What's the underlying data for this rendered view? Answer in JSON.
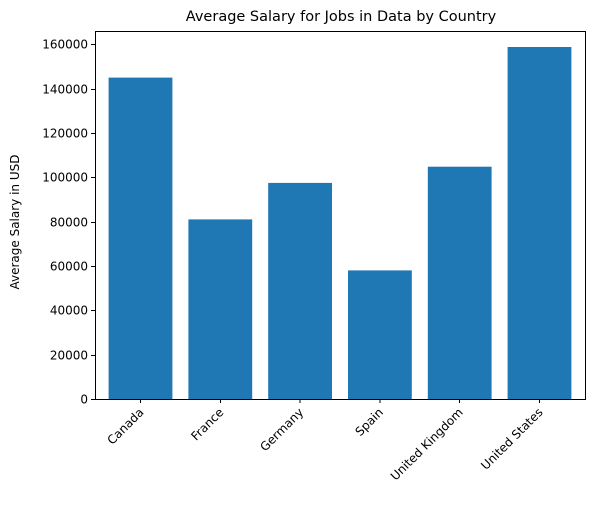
{
  "chart_data": {
    "type": "bar",
    "title": "Average Salary for Jobs in Data by Country",
    "xlabel": "",
    "ylabel": "Average Salary in USD",
    "categories": [
      "Canada",
      "France",
      "Germany",
      "Spain",
      "United Kingdom",
      "United States"
    ],
    "values": [
      145000,
      81000,
      97500,
      58000,
      104800,
      158800
    ],
    "ylim": [
      0,
      166000
    ],
    "yticks": [
      0,
      20000,
      40000,
      60000,
      80000,
      100000,
      120000,
      140000,
      160000
    ],
    "ytick_labels": [
      "0",
      "20000",
      "40000",
      "60000",
      "80000",
      "100000",
      "120000",
      "140000",
      "160000"
    ],
    "grid": false,
    "bar_color": "#1f77b4"
  }
}
